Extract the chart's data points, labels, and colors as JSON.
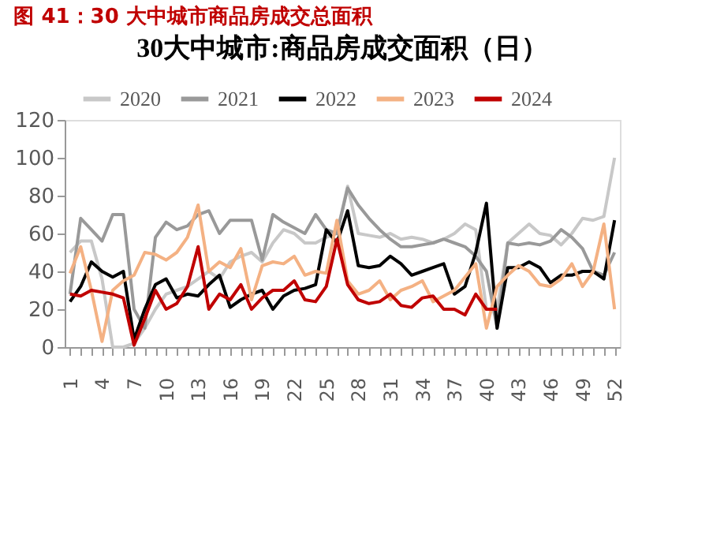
{
  "chart_data": {
    "type": "line",
    "title": "图 41：30 大中城市商品房成交总面积",
    "subtitle": "30大中城市:商品房成交面积（日）",
    "categories": [
      "1",
      null,
      null,
      "4",
      null,
      null,
      "7",
      null,
      null,
      "10",
      null,
      null,
      "13",
      null,
      null,
      "16",
      null,
      null,
      "19",
      null,
      null,
      "22",
      null,
      null,
      "25",
      null,
      null,
      "28",
      null,
      null,
      "31",
      null,
      null,
      "34",
      null,
      null,
      "37",
      null,
      null,
      "40",
      null,
      null,
      "43",
      null,
      null,
      "46",
      null,
      null,
      "49",
      null,
      null,
      "52"
    ],
    "series": [
      {
        "name": "2020",
        "color": "#c8c8c8",
        "values": [
          50,
          56,
          56,
          36,
          0,
          0,
          2,
          10,
          20,
          28,
          30,
          32,
          36,
          40,
          36,
          45,
          48,
          50,
          45,
          55,
          62,
          60,
          55,
          55,
          58,
          60,
          85,
          60,
          59,
          58,
          60,
          57,
          58,
          57,
          55,
          57,
          60,
          65,
          62,
          20,
          20,
          55,
          60,
          65,
          60,
          59,
          54,
          60,
          68,
          67,
          69,
          100
        ]
      },
      {
        "name": "2021",
        "color": "#999999",
        "values": [
          28,
          68,
          62,
          56,
          70,
          70,
          20,
          10,
          58,
          66,
          62,
          64,
          70,
          72,
          60,
          67,
          67,
          67,
          46,
          70,
          66,
          63,
          60,
          70,
          62,
          60,
          84,
          75,
          68,
          62,
          57,
          53,
          53,
          54,
          55,
          57,
          55,
          53,
          48,
          40,
          10,
          55,
          54,
          55,
          54,
          56,
          62,
          58,
          52,
          40,
          38,
          50
        ]
      },
      {
        "name": "2022",
        "color": "#000000",
        "values": [
          24,
          32,
          45,
          40,
          37,
          40,
          4,
          20,
          33,
          36,
          26,
          28,
          27,
          33,
          38,
          21,
          25,
          28,
          30,
          20,
          27,
          30,
          31,
          33,
          62,
          55,
          72,
          43,
          42,
          43,
          48,
          44,
          38,
          40,
          42,
          44,
          28,
          32,
          50,
          76,
          10,
          42,
          42,
          45,
          42,
          34,
          38,
          38,
          40,
          40,
          36,
          67
        ]
      },
      {
        "name": "2023",
        "color": "#f4b183",
        "values": [
          39,
          53,
          30,
          3,
          30,
          35,
          38,
          50,
          49,
          46,
          50,
          58,
          75,
          40,
          45,
          42,
          52,
          25,
          43,
          45,
          44,
          48,
          38,
          40,
          39,
          67,
          35,
          28,
          30,
          35,
          25,
          30,
          32,
          35,
          24,
          27,
          30,
          37,
          44,
          10,
          32,
          38,
          43,
          40,
          33,
          32,
          36,
          44,
          32,
          40,
          65,
          20
        ]
      },
      {
        "name": "2024",
        "color": "#c00000",
        "values": [
          28,
          27,
          30,
          29,
          28,
          26,
          1,
          15,
          30,
          20,
          23,
          32,
          53,
          20,
          28,
          25,
          33,
          20,
          26,
          30,
          30,
          35,
          25,
          24,
          32,
          57,
          33,
          25,
          23,
          24,
          28,
          22,
          21,
          26,
          27,
          20,
          20,
          17,
          28,
          20,
          20,
          null,
          null,
          null,
          null,
          null,
          null,
          null,
          null,
          null,
          null,
          null
        ]
      }
    ],
    "ylim": [
      0,
      120
    ],
    "yticks": [
      0,
      20,
      40,
      60,
      80,
      100,
      120
    ],
    "grid": false,
    "legend": "top"
  }
}
